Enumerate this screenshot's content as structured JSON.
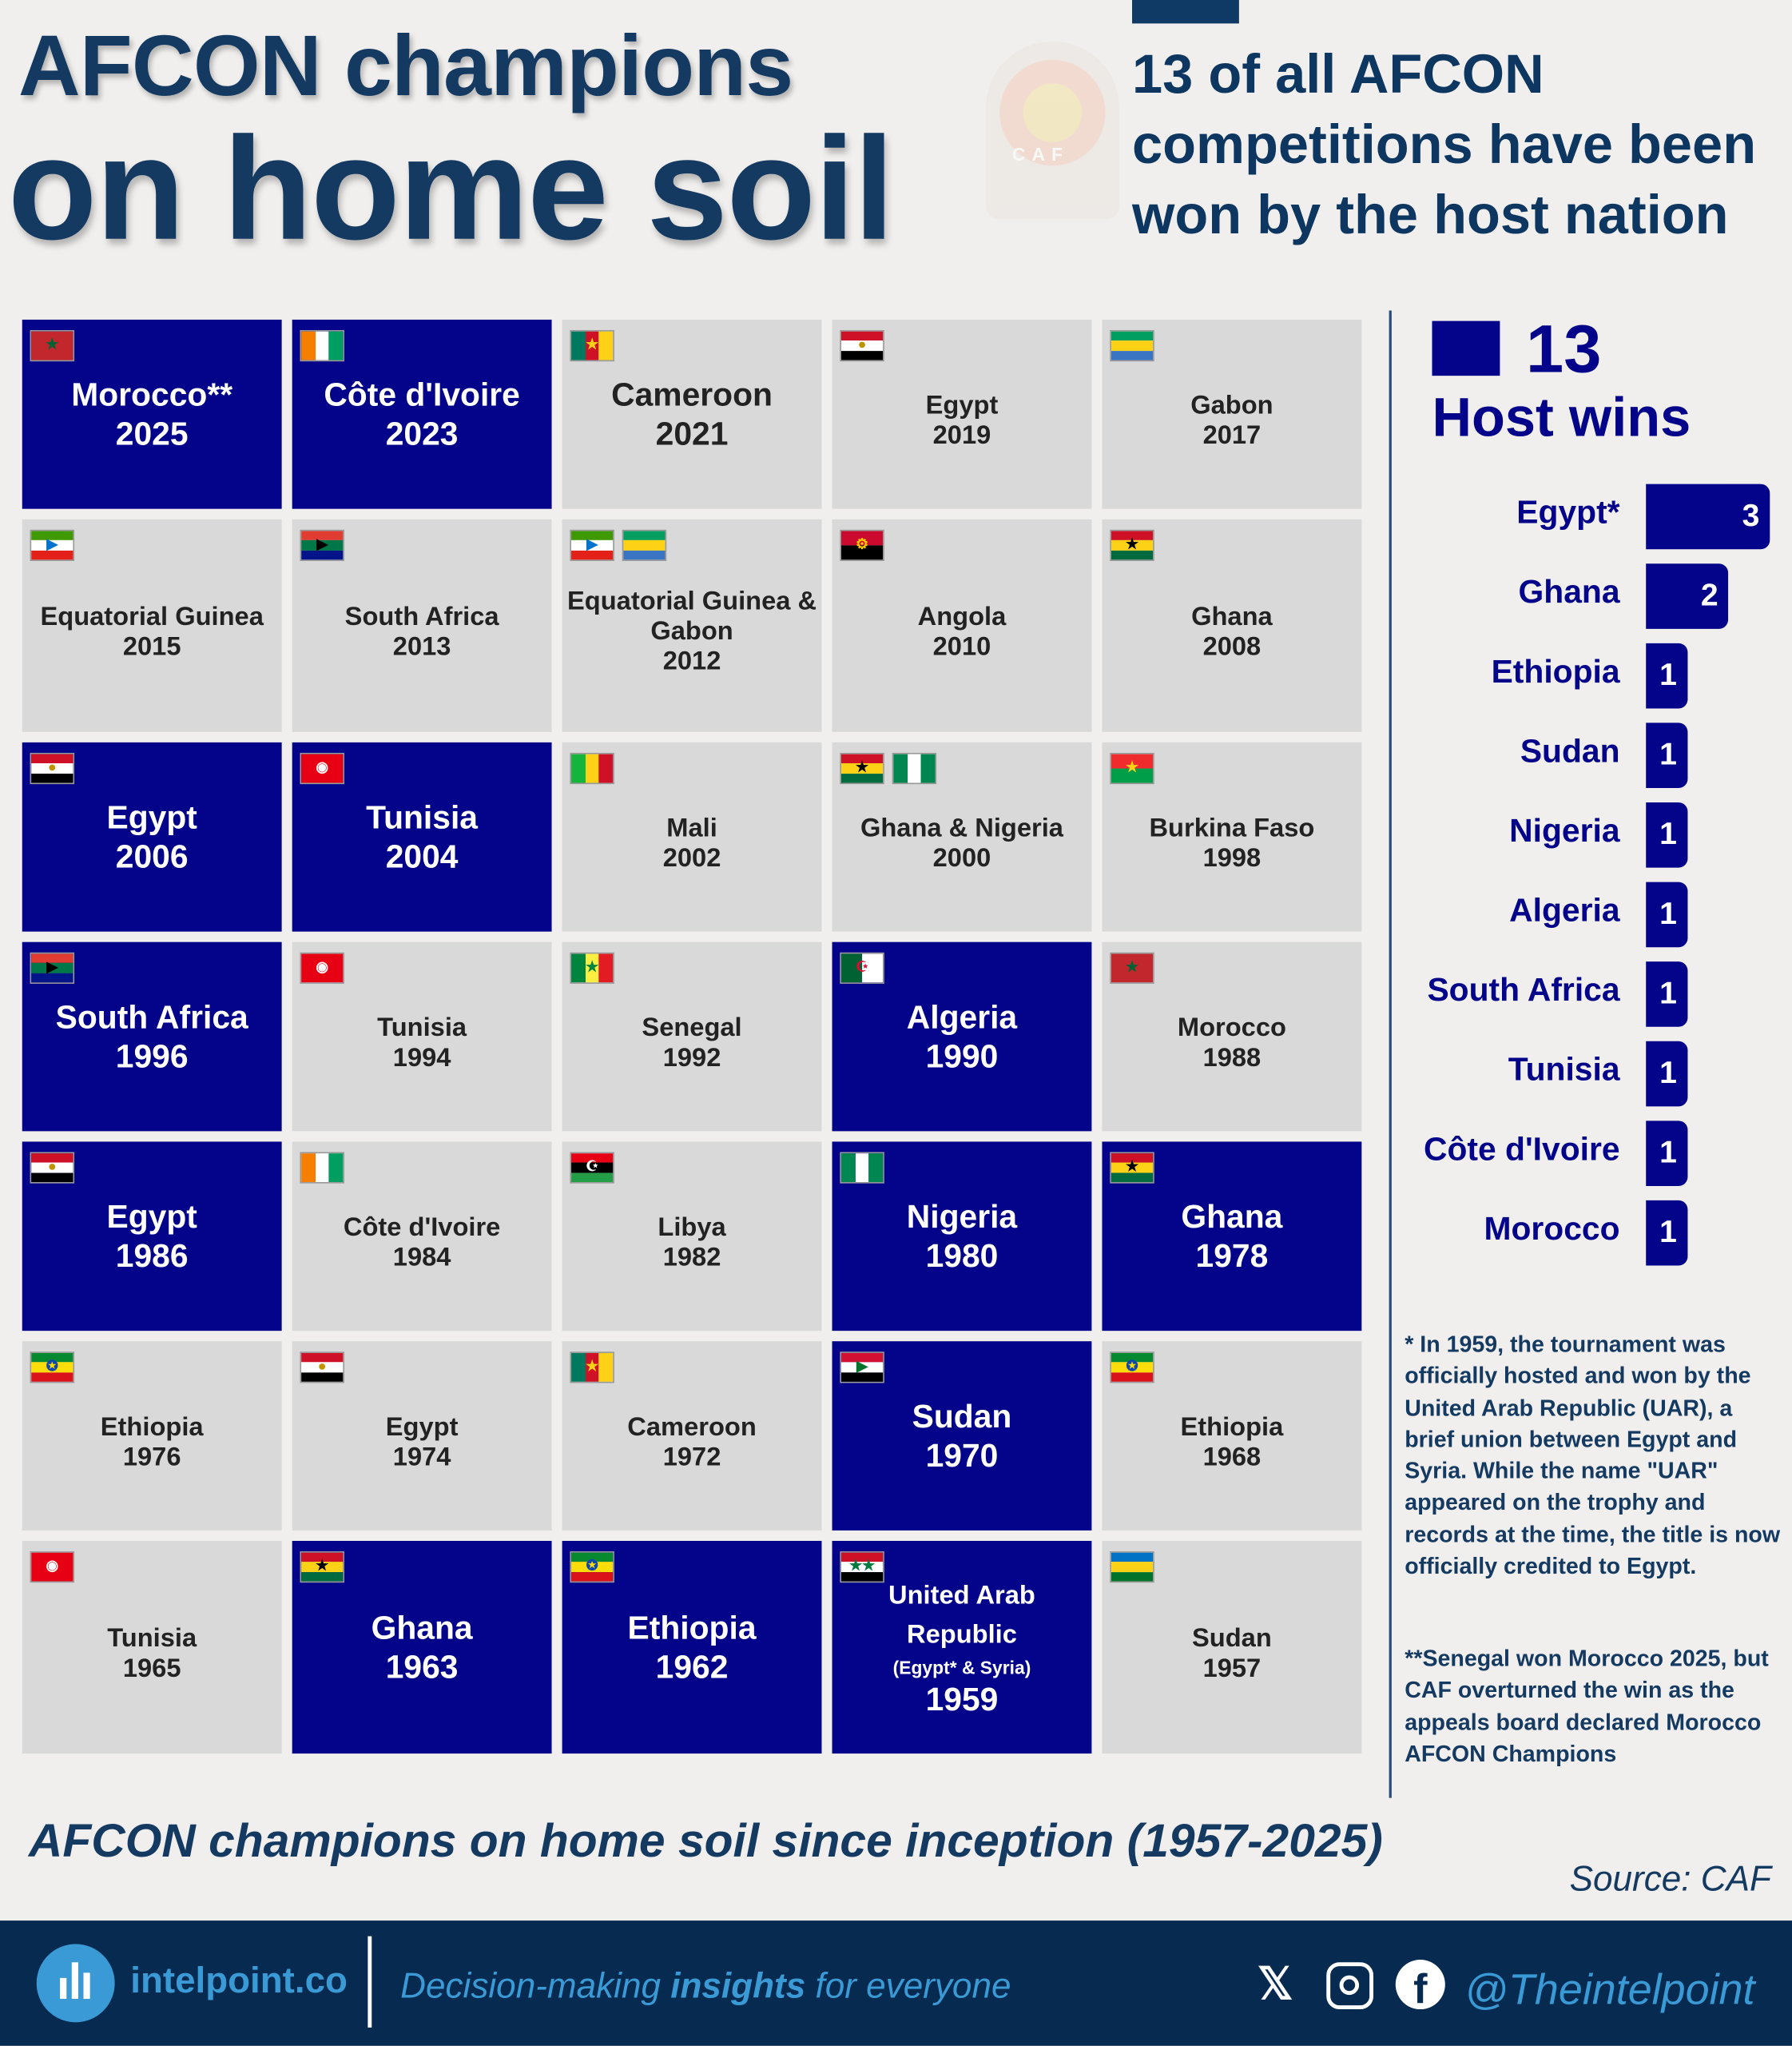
{
  "header": {
    "title_line1": "AFCON champions",
    "title_line2": "on home soil",
    "subtitle": "13 of all AFCON competitions have been won by the host nation",
    "logo_text": "CAF AFRICA CUP OF NATIONS"
  },
  "colors": {
    "host": "#04048a",
    "non_host": "#d9d9d9",
    "title": "#153a62",
    "footer": "#062a50",
    "accent": "#3a9ad6"
  },
  "tiles": [
    {
      "country": "Morocco**",
      "year": "2025",
      "host": true,
      "flags": [
        "morocco"
      ]
    },
    {
      "country": "Côte d'Ivoire",
      "year": "2023",
      "host": true,
      "flags": [
        "cote-divoire"
      ]
    },
    {
      "country": "Cameroon",
      "year": "2021",
      "host": false,
      "big": true,
      "flags": [
        "cameroon"
      ]
    },
    {
      "country": "Egypt",
      "year": "2019",
      "host": false,
      "flags": [
        "egypt"
      ]
    },
    {
      "country": "Gabon",
      "year": "2017",
      "host": false,
      "flags": [
        "gabon"
      ]
    },
    {
      "country": "Equatorial Guinea",
      "year": "2015",
      "host": false,
      "flags": [
        "equatorial-guinea"
      ]
    },
    {
      "country": "South Africa",
      "year": "2013",
      "host": false,
      "flags": [
        "south-africa"
      ]
    },
    {
      "country": "Equatorial Guinea & Gabon",
      "year": "2012",
      "host": false,
      "flags": [
        "equatorial-guinea",
        "gabon"
      ]
    },
    {
      "country": "Angola",
      "year": "2010",
      "host": false,
      "flags": [
        "angola"
      ]
    },
    {
      "country": "Ghana",
      "year": "2008",
      "host": false,
      "flags": [
        "ghana"
      ]
    },
    {
      "country": "Egypt",
      "year": "2006",
      "host": true,
      "flags": [
        "egypt"
      ]
    },
    {
      "country": "Tunisia",
      "year": "2004",
      "host": true,
      "flags": [
        "tunisia"
      ]
    },
    {
      "country": "Mali",
      "year": "2002",
      "host": false,
      "flags": [
        "mali"
      ]
    },
    {
      "country": "Ghana & Nigeria",
      "year": "2000",
      "host": false,
      "flags": [
        "ghana",
        "nigeria"
      ]
    },
    {
      "country": "Burkina Faso",
      "year": "1998",
      "host": false,
      "flags": [
        "burkina-faso"
      ]
    },
    {
      "country": "South Africa",
      "year": "1996",
      "host": true,
      "flags": [
        "south-africa"
      ]
    },
    {
      "country": "Tunisia",
      "year": "1994",
      "host": false,
      "flags": [
        "tunisia"
      ]
    },
    {
      "country": "Senegal",
      "year": "1992",
      "host": false,
      "flags": [
        "senegal"
      ]
    },
    {
      "country": "Algeria",
      "year": "1990",
      "host": true,
      "flags": [
        "algeria"
      ]
    },
    {
      "country": "Morocco",
      "year": "1988",
      "host": false,
      "flags": [
        "morocco"
      ]
    },
    {
      "country": "Egypt",
      "year": "1986",
      "host": true,
      "flags": [
        "egypt"
      ]
    },
    {
      "country": "Côte d'Ivoire",
      "year": "1984",
      "host": false,
      "flags": [
        "cote-divoire"
      ]
    },
    {
      "country": "Libya",
      "year": "1982",
      "host": false,
      "flags": [
        "libya"
      ]
    },
    {
      "country": "Nigeria",
      "year": "1980",
      "host": true,
      "flags": [
        "nigeria"
      ]
    },
    {
      "country": "Ghana",
      "year": "1978",
      "host": true,
      "flags": [
        "ghana"
      ]
    },
    {
      "country": "Ethiopia",
      "year": "1976",
      "host": false,
      "flags": [
        "ethiopia"
      ]
    },
    {
      "country": "Egypt",
      "year": "1974",
      "host": false,
      "flags": [
        "egypt"
      ]
    },
    {
      "country": "Cameroon",
      "year": "1972",
      "host": false,
      "flags": [
        "cameroon"
      ]
    },
    {
      "country": "Sudan",
      "year": "1970",
      "host": true,
      "flags": [
        "sudan"
      ]
    },
    {
      "country": "Ethiopia",
      "year": "1968",
      "host": false,
      "flags": [
        "ethiopia"
      ]
    },
    {
      "country": "Tunisia",
      "year": "1965",
      "host": false,
      "flags": [
        "tunisia"
      ]
    },
    {
      "country": "Ghana",
      "year": "1963",
      "host": true,
      "flags": [
        "ghana"
      ]
    },
    {
      "country": "Ethiopia",
      "year": "1962",
      "host": true,
      "flags": [
        "ethiopia"
      ]
    },
    {
      "country": "United Arab Republic",
      "note": "(Egypt* & Syria)",
      "year": "1959",
      "host": true,
      "flags": [
        "uar"
      ]
    },
    {
      "country": "Sudan",
      "year": "1957",
      "host": false,
      "flags": [
        "sudan-1957"
      ]
    }
  ],
  "chart_data": {
    "type": "bar",
    "title": "Host wins",
    "headline_value": "13",
    "orientation": "horizontal",
    "categories": [
      "Egypt*",
      "Ghana",
      "Ethiopia",
      "Sudan",
      "Nigeria",
      "Algeria",
      "South Africa",
      "Tunisia",
      "Côte d'Ivoire",
      "Morocco"
    ],
    "values": [
      3,
      2,
      1,
      1,
      1,
      1,
      1,
      1,
      1,
      1
    ],
    "legend_color": "#04048a"
  },
  "footnotes": [
    "* In 1959, the tournament was officially hosted and won by the United Arab Republic (UAR), a brief union between Egypt and Syria. While the name \"UAR\" appeared on the trophy and records at the time, the title is now officially credited to Egypt.",
    "**Senegal won Morocco 2025, but CAF overturned the win as the appeals board declared Morocco AFCON Champions"
  ],
  "caption": "AFCON champions on home soil since inception (1957-2025)",
  "source": "Source: CAF",
  "footer": {
    "site": "intelpoint.co",
    "tagline_pre": "Decision-making ",
    "tagline_bold": "insights",
    "tagline_post": " for everyone",
    "handle": "@Theintelpoint",
    "social_icons": [
      "x-icon",
      "instagram-icon",
      "facebook-icon"
    ]
  }
}
